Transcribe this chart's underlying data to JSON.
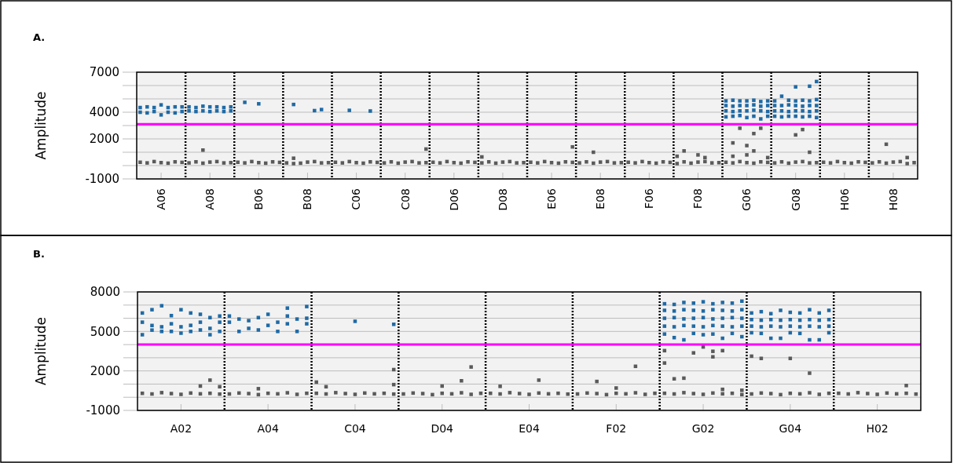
{
  "chart_data": [
    {
      "type": "scatter",
      "title": "A.",
      "ylabel": "Amplitude",
      "ylim": [
        -1000,
        7000
      ],
      "marker": "square",
      "grid": true,
      "categories": [
        null,
        null,
        null,
        "A06",
        null,
        null,
        null,
        null,
        null,
        null,
        "A08",
        null,
        null,
        null,
        null,
        null,
        null,
        "B06",
        null,
        null,
        null,
        null,
        null,
        null,
        "B08",
        null,
        null,
        null,
        null,
        null,
        null,
        "C06",
        null,
        null,
        null,
        null,
        null,
        null,
        "C08",
        null,
        null,
        null,
        null,
        null,
        null,
        "D06",
        null,
        null,
        null,
        null,
        null,
        null,
        "D08",
        null,
        null,
        null,
        null,
        null,
        null,
        "E06",
        null,
        null,
        null,
        null,
        null,
        null,
        "E08",
        null,
        null,
        null,
        null,
        null,
        null,
        "F06",
        null,
        null,
        null,
        null,
        null,
        null,
        "F08",
        null,
        null,
        null,
        null,
        null,
        null,
        "G06",
        null,
        null,
        null,
        null,
        null,
        null,
        "G08",
        null,
        null,
        null,
        null,
        null,
        null,
        "H06",
        null,
        null,
        null,
        null,
        null,
        null,
        "H08",
        null,
        null,
        null
      ],
      "yticks": [
        -1000,
        {
          "value": 0,
          "label": null
        },
        {
          "value": 1000,
          "label": null
        },
        2000,
        {
          "value": 3000,
          "label": null
        },
        4000,
        {
          "value": 5000,
          "label": null
        },
        {
          "value": 6000,
          "label": null
        },
        7000
      ],
      "ref_lines": [
        {
          "axis": "y",
          "value": 3100,
          "color": "#ff00ff",
          "line_style": "solid"
        }
      ],
      "series": [
        {
          "color": "#5a5a5a",
          "values": [
            250,
            200,
            300,
            220,
            180,
            280,
            240,
            200,
            280,
            180,
            260,
            300,
            200,
            220,
            250,
            200,
            300,
            220,
            180,
            280,
            240,
            200,
            150,
            180,
            260,
            300,
            200,
            220,
            250,
            200,
            300,
            220,
            180,
            280,
            240,
            200,
            280,
            180,
            260,
            300,
            200,
            220,
            250,
            200,
            300,
            220,
            180,
            280,
            240,
            200,
            280,
            180,
            260,
            300,
            200,
            220,
            250,
            200,
            300,
            220,
            180,
            280,
            240,
            200,
            280,
            180,
            260,
            300,
            200,
            220,
            250,
            200,
            300,
            220,
            180,
            280,
            240,
            150,
            280,
            180,
            260,
            300,
            200,
            220,
            250,
            200,
            300,
            220,
            180,
            280,
            240,
            200,
            280,
            180,
            260,
            300,
            200,
            220,
            250,
            200,
            300,
            220,
            180,
            280,
            240,
            200,
            280,
            180,
            260,
            300,
            150,
            220
          ]
        },
        {
          "color": "#5a5a5a",
          "values": [
            null,
            null,
            null,
            null,
            null,
            null,
            null,
            null,
            null,
            1160,
            null,
            null,
            null,
            null,
            null,
            null,
            null,
            null,
            null,
            null,
            null,
            null,
            550,
            null,
            null,
            null,
            null,
            null,
            null,
            null,
            null,
            null,
            null,
            null,
            null,
            null,
            null,
            null,
            null,
            null,
            null,
            1240,
            null,
            null,
            null,
            null,
            null,
            null,
            null,
            650,
            null,
            null,
            null,
            null,
            null,
            null,
            null,
            null,
            null,
            null,
            null,
            null,
            1400,
            null,
            null,
            1000,
            null,
            null,
            null,
            null,
            null,
            null,
            null,
            null,
            null,
            null,
            null,
            700,
            1100,
            null,
            800,
            600,
            null,
            null,
            null,
            700,
            2800,
            1500,
            1100,
            2800,
            600,
            null,
            null,
            null,
            2300,
            2700,
            1000,
            null,
            null,
            null,
            null,
            null,
            null,
            null,
            null,
            null,
            null,
            1600,
            null,
            null,
            600,
            null
          ]
        },
        {
          "color": "#5a5a5a",
          "values": [
            null,
            null,
            null,
            null,
            null,
            null,
            null,
            null,
            null,
            null,
            null,
            null,
            null,
            null,
            null,
            null,
            null,
            null,
            null,
            null,
            null,
            null,
            null,
            null,
            null,
            null,
            null,
            null,
            null,
            null,
            null,
            null,
            null,
            null,
            null,
            null,
            null,
            null,
            null,
            null,
            null,
            null,
            null,
            null,
            null,
            null,
            null,
            null,
            null,
            null,
            null,
            null,
            null,
            null,
            null,
            null,
            null,
            null,
            null,
            null,
            null,
            null,
            null,
            null,
            null,
            null,
            null,
            null,
            null,
            null,
            null,
            null,
            null,
            null,
            null,
            null,
            null,
            null,
            null,
            null,
            null,
            null,
            null,
            null,
            null,
            1700,
            null,
            800,
            2400,
            null,
            null,
            null,
            null,
            null,
            null,
            null,
            null,
            null,
            null,
            null,
            null,
            null,
            null,
            null,
            null,
            null,
            null,
            null,
            null,
            null,
            null,
            null
          ]
        },
        {
          "color": "#1f6aa5",
          "values": [
            4000,
            3950,
            4050,
            3800,
            4000,
            3950,
            4050,
            4100,
            4050,
            4100,
            4050,
            4100,
            4050,
            4100,
            null,
            4740,
            null,
            4630,
            null,
            null,
            null,
            null,
            4580,
            null,
            null,
            4120,
            4200,
            null,
            null,
            null,
            4140,
            null,
            null,
            4090,
            null,
            null,
            null,
            null,
            null,
            null,
            null,
            null,
            null,
            null,
            null,
            null,
            null,
            null,
            null,
            null,
            null,
            null,
            null,
            null,
            null,
            null,
            null,
            null,
            null,
            null,
            null,
            null,
            null,
            null,
            null,
            null,
            null,
            null,
            null,
            null,
            null,
            null,
            null,
            null,
            null,
            null,
            null,
            null,
            null,
            null,
            null,
            null,
            null,
            null,
            3650,
            3700,
            3750,
            3600,
            3700,
            3500,
            3700,
            3700,
            3650,
            3700,
            3700,
            3650,
            3700,
            3600,
            null,
            null,
            null,
            null,
            null,
            null,
            null,
            null,
            null,
            null,
            null,
            null,
            null,
            null
          ]
        },
        {
          "color": "#1f6aa5",
          "values": [
            4350,
            4400,
            4350,
            4550,
            4350,
            4400,
            4400,
            4400,
            4350,
            4450,
            4400,
            4400,
            4350,
            4400,
            null,
            null,
            null,
            null,
            null,
            null,
            null,
            null,
            null,
            null,
            null,
            null,
            null,
            null,
            null,
            null,
            null,
            null,
            null,
            null,
            null,
            null,
            null,
            null,
            null,
            null,
            null,
            null,
            null,
            null,
            null,
            null,
            null,
            null,
            null,
            null,
            null,
            null,
            null,
            null,
            null,
            null,
            null,
            null,
            null,
            null,
            null,
            null,
            null,
            null,
            null,
            null,
            null,
            null,
            null,
            null,
            null,
            null,
            null,
            null,
            null,
            null,
            null,
            null,
            null,
            null,
            null,
            null,
            null,
            null,
            4100,
            4050,
            4100,
            4100,
            4150,
            4100,
            4050,
            4100,
            4100,
            4050,
            4100,
            4100,
            4050,
            4100,
            null,
            null,
            null,
            null,
            null,
            null,
            null,
            null,
            null,
            null,
            null,
            null,
            null,
            null
          ]
        },
        {
          "color": "#1f6aa5",
          "values": [
            null,
            null,
            null,
            null,
            null,
            null,
            null,
            null,
            null,
            null,
            null,
            null,
            null,
            null,
            null,
            null,
            null,
            null,
            null,
            null,
            null,
            null,
            null,
            null,
            null,
            null,
            null,
            null,
            null,
            null,
            null,
            null,
            null,
            null,
            null,
            null,
            null,
            null,
            null,
            null,
            null,
            null,
            null,
            null,
            null,
            null,
            null,
            null,
            null,
            null,
            null,
            null,
            null,
            null,
            null,
            null,
            null,
            null,
            null,
            null,
            null,
            null,
            null,
            null,
            null,
            null,
            null,
            null,
            null,
            null,
            null,
            null,
            null,
            null,
            null,
            null,
            null,
            null,
            null,
            null,
            null,
            null,
            null,
            null,
            4500,
            4450,
            4500,
            4500,
            4550,
            4450,
            4500,
            4500,
            4500,
            4550,
            4500,
            4450,
            4500,
            4500,
            null,
            null,
            null,
            null,
            null,
            null,
            null,
            null,
            null,
            null,
            null,
            null,
            null,
            null
          ]
        },
        {
          "color": "#1f6aa5",
          "values": [
            null,
            null,
            null,
            null,
            null,
            null,
            null,
            null,
            null,
            null,
            null,
            null,
            null,
            null,
            null,
            null,
            null,
            null,
            null,
            null,
            null,
            null,
            null,
            null,
            null,
            null,
            null,
            null,
            null,
            null,
            null,
            null,
            null,
            null,
            null,
            null,
            null,
            null,
            null,
            null,
            null,
            null,
            null,
            null,
            null,
            null,
            null,
            null,
            null,
            null,
            null,
            null,
            null,
            null,
            null,
            null,
            null,
            null,
            null,
            null,
            null,
            null,
            null,
            null,
            null,
            null,
            null,
            null,
            null,
            null,
            null,
            null,
            null,
            null,
            null,
            null,
            null,
            null,
            null,
            null,
            null,
            null,
            null,
            null,
            4850,
            4900,
            4850,
            4850,
            4900,
            4800,
            4850,
            4850,
            5200,
            4900,
            4850,
            4900,
            4850,
            4950,
            null,
            null,
            null,
            null,
            null,
            null,
            null,
            null,
            null,
            null,
            null,
            null,
            null,
            null
          ]
        },
        {
          "color": "#1f6aa5",
          "values": [
            null,
            null,
            null,
            null,
            null,
            null,
            null,
            null,
            null,
            null,
            null,
            null,
            null,
            null,
            null,
            null,
            null,
            null,
            null,
            null,
            null,
            null,
            null,
            null,
            null,
            null,
            null,
            null,
            null,
            null,
            null,
            null,
            null,
            null,
            null,
            null,
            null,
            null,
            null,
            null,
            null,
            null,
            null,
            null,
            null,
            null,
            null,
            null,
            null,
            null,
            null,
            null,
            null,
            null,
            null,
            null,
            null,
            null,
            null,
            null,
            null,
            null,
            null,
            null,
            null,
            null,
            null,
            null,
            null,
            null,
            null,
            null,
            null,
            null,
            null,
            null,
            null,
            null,
            null,
            null,
            null,
            null,
            null,
            null,
            null,
            null,
            null,
            null,
            null,
            null,
            null,
            null,
            null,
            null,
            5900,
            null,
            5950,
            6300,
            null,
            null,
            null,
            null,
            null,
            null,
            null,
            null,
            null,
            null,
            null,
            null,
            null,
            null
          ]
        }
      ]
    },
    {
      "type": "scatter",
      "title": "B.",
      "ylabel": "Amplitude",
      "ylim": [
        -1000,
        8000
      ],
      "marker": "square",
      "grid": true,
      "categories": [
        null,
        null,
        null,
        null,
        "A02",
        null,
        null,
        null,
        null,
        null,
        null,
        null,
        null,
        "A04",
        null,
        null,
        null,
        null,
        null,
        null,
        null,
        null,
        "C04",
        null,
        null,
        null,
        null,
        null,
        null,
        null,
        null,
        "D04",
        null,
        null,
        null,
        null,
        null,
        null,
        null,
        null,
        "E04",
        null,
        null,
        null,
        null,
        null,
        null,
        null,
        null,
        "F02",
        null,
        null,
        null,
        null,
        null,
        null,
        null,
        null,
        "G02",
        null,
        null,
        null,
        null,
        null,
        null,
        null,
        null,
        "G04",
        null,
        null,
        null,
        null,
        null,
        null,
        null,
        null,
        "H02",
        null,
        null,
        null,
        null
      ],
      "yticks": [
        -1000,
        {
          "value": 0,
          "label": null
        },
        {
          "value": 1000,
          "label": null
        },
        2000,
        {
          "value": 3000,
          "label": null
        },
        {
          "value": 4000,
          "label": null
        },
        5000,
        {
          "value": 6000,
          "label": null
        },
        {
          "value": 7000,
          "label": null
        },
        8000
      ],
      "ref_lines": [
        {
          "axis": "y",
          "value": 4000,
          "color": "#ff00ff",
          "line_style": "solid"
        }
      ],
      "series": [
        {
          "color": "#5a5a5a",
          "values": [
            300,
            250,
            350,
            280,
            220,
            320,
            260,
            300,
            240,
            250,
            320,
            280,
            200,
            300,
            260,
            340,
            220,
            300,
            300,
            250,
            350,
            280,
            220,
            320,
            260,
            300,
            240,
            250,
            320,
            280,
            200,
            300,
            260,
            340,
            220,
            300,
            300,
            250,
            350,
            280,
            220,
            320,
            260,
            300,
            240,
            250,
            320,
            280,
            200,
            300,
            260,
            340,
            220,
            300,
            300,
            250,
            350,
            280,
            220,
            320,
            260,
            300,
            200,
            250,
            320,
            280,
            200,
            300,
            260,
            340,
            220,
            300,
            300,
            250,
            350,
            280,
            220,
            320,
            260,
            300,
            240
          ]
        },
        {
          "color": "#5a5a5a",
          "values": [
            null,
            null,
            null,
            null,
            null,
            null,
            850,
            1300,
            800,
            null,
            null,
            null,
            650,
            null,
            null,
            null,
            null,
            null,
            1150,
            800,
            null,
            null,
            null,
            null,
            null,
            null,
            960,
            null,
            null,
            null,
            null,
            850,
            null,
            1250,
            2300,
            null,
            null,
            830,
            null,
            null,
            null,
            1300,
            null,
            null,
            null,
            null,
            null,
            1200,
            null,
            700,
            null,
            2350,
            null,
            null,
            3540,
            null,
            1450,
            3370,
            3820,
            3490,
            3540,
            null,
            530,
            3120,
            2950,
            null,
            null,
            2950,
            null,
            1830,
            null,
            null,
            null,
            null,
            null,
            null,
            null,
            null,
            null,
            890,
            null
          ]
        },
        {
          "color": "#5a5a5a",
          "values": [
            null,
            null,
            null,
            null,
            null,
            null,
            null,
            null,
            null,
            null,
            null,
            null,
            null,
            null,
            null,
            null,
            null,
            null,
            null,
            null,
            null,
            null,
            null,
            null,
            null,
            null,
            2100,
            null,
            null,
            null,
            null,
            null,
            null,
            null,
            null,
            null,
            null,
            null,
            null,
            null,
            null,
            null,
            null,
            null,
            null,
            null,
            null,
            null,
            null,
            null,
            null,
            null,
            null,
            null,
            2600,
            1400,
            null,
            null,
            null,
            3070,
            600,
            null,
            null,
            null,
            null,
            null,
            null,
            null,
            null,
            null,
            null,
            null,
            null,
            null,
            null,
            null,
            null,
            null,
            null,
            null,
            null
          ]
        },
        {
          "color": "#1f6aa5",
          "values": [
            4750,
            5100,
            5000,
            5000,
            4870,
            5000,
            5110,
            4750,
            5000,
            5700,
            5000,
            5230,
            5110,
            5460,
            5000,
            5580,
            5000,
            5580,
            null,
            null,
            null,
            null,
            5770,
            null,
            null,
            null,
            5540,
            null,
            null,
            null,
            null,
            null,
            null,
            null,
            null,
            null,
            null,
            null,
            null,
            null,
            null,
            null,
            null,
            null,
            null,
            null,
            null,
            null,
            null,
            null,
            null,
            null,
            null,
            null,
            4800,
            4530,
            4360,
            4850,
            4750,
            4800,
            4480,
            4850,
            4600,
            4900,
            4850,
            4480,
            4480,
            4900,
            4850,
            4360,
            4360,
            4900,
            null,
            null,
            null,
            null,
            null,
            null,
            null,
            null,
            null
          ]
        },
        {
          "color": "#1f6aa5",
          "values": [
            5700,
            5450,
            5350,
            5580,
            5350,
            5460,
            5700,
            5230,
            5700,
            6170,
            5940,
            5820,
            6050,
            6300,
            5700,
            6170,
            5940,
            6000,
            null,
            null,
            null,
            null,
            null,
            null,
            null,
            null,
            null,
            null,
            null,
            null,
            null,
            null,
            null,
            null,
            null,
            null,
            null,
            null,
            null,
            null,
            null,
            null,
            null,
            null,
            null,
            null,
            null,
            null,
            null,
            null,
            null,
            null,
            null,
            null,
            5400,
            5350,
            5450,
            5400,
            5350,
            5450,
            5400,
            5350,
            5400,
            5400,
            5350,
            5400,
            5350,
            5400,
            5350,
            5400,
            5350,
            5400,
            null,
            null,
            null,
            null,
            null,
            null,
            null,
            null,
            null
          ]
        },
        {
          "color": "#1f6aa5",
          "values": [
            6400,
            6650,
            6950,
            6200,
            6650,
            6400,
            6300,
            6050,
            6170,
            null,
            null,
            null,
            null,
            null,
            null,
            6770,
            null,
            6890,
            null,
            null,
            null,
            null,
            null,
            null,
            null,
            null,
            null,
            null,
            null,
            null,
            null,
            null,
            null,
            null,
            null,
            null,
            null,
            null,
            null,
            null,
            null,
            null,
            null,
            null,
            null,
            null,
            null,
            null,
            null,
            null,
            null,
            null,
            null,
            null,
            6000,
            6050,
            5950,
            6000,
            6050,
            5950,
            6000,
            6050,
            6000,
            5900,
            5850,
            5900,
            5850,
            5900,
            5850,
            5900,
            5850,
            5900,
            null,
            null,
            null,
            null,
            null,
            null,
            null,
            null,
            null
          ]
        },
        {
          "color": "#1f6aa5",
          "values": [
            null,
            null,
            null,
            null,
            null,
            null,
            null,
            null,
            null,
            null,
            null,
            null,
            null,
            null,
            null,
            null,
            null,
            null,
            null,
            null,
            null,
            null,
            null,
            null,
            null,
            null,
            null,
            null,
            null,
            null,
            null,
            null,
            null,
            null,
            null,
            null,
            null,
            null,
            null,
            null,
            null,
            null,
            null,
            null,
            null,
            null,
            null,
            null,
            null,
            null,
            null,
            null,
            null,
            null,
            6600,
            6550,
            6650,
            6600,
            6550,
            6650,
            6600,
            6550,
            6650,
            6400,
            6500,
            6350,
            6600,
            6450,
            6400,
            6650,
            6400,
            6600,
            null,
            null,
            null,
            null,
            null,
            null,
            null,
            null,
            null
          ]
        },
        {
          "color": "#1f6aa5",
          "values": [
            null,
            null,
            null,
            null,
            null,
            null,
            null,
            null,
            null,
            null,
            null,
            null,
            null,
            null,
            null,
            null,
            null,
            null,
            null,
            null,
            null,
            null,
            null,
            null,
            null,
            null,
            null,
            null,
            null,
            null,
            null,
            null,
            null,
            null,
            null,
            null,
            null,
            null,
            null,
            null,
            null,
            null,
            null,
            null,
            null,
            null,
            null,
            null,
            null,
            null,
            null,
            null,
            null,
            null,
            7100,
            7050,
            7200,
            7150,
            7250,
            7100,
            7200,
            7150,
            7300,
            null,
            null,
            null,
            null,
            null,
            null,
            null,
            null,
            null,
            null,
            null,
            null,
            null,
            null,
            null,
            null,
            null,
            null
          ]
        }
      ]
    }
  ]
}
